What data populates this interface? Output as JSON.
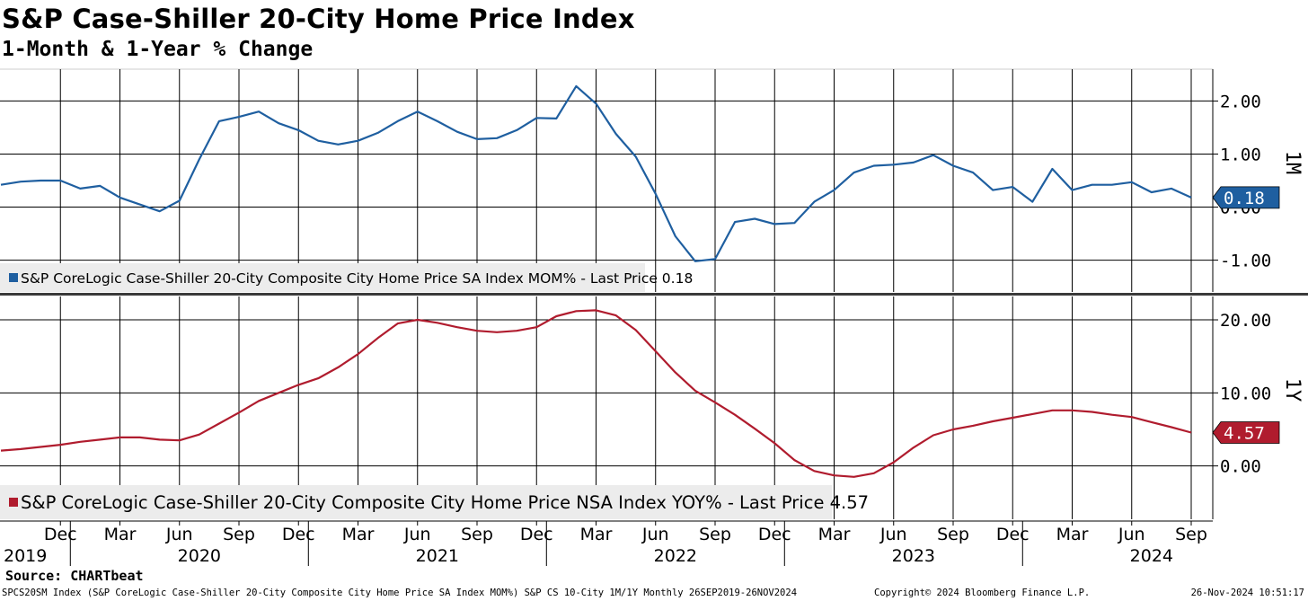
{
  "title": "S&P Case-Shiller 20-City Home Price Index",
  "subtitle": "1-Month & 1-Year % Change",
  "source": "Source: CHARTbeat",
  "footer": {
    "left": "SPCS20SM Index (S&P CoreLogic Case-Shiller 20-City Composite City Home Price SA Index MOM%) S&P CS 10-City 1M/1Y  Monthly 26SEP2019-26NOV2024",
    "copyright": "Copyright© 2024 Bloomberg Finance L.P.",
    "date": "26-Nov-2024 10:51:17"
  },
  "colors": {
    "mom": "#1f5fa0",
    "yoy": "#b01c2e",
    "grid": "#000000"
  },
  "chart_data": [
    {
      "type": "line",
      "panel": "top",
      "axis_label": "1M",
      "series_name": "S&P CoreLogic Case-Shiller 20-City Composite City Home Price SA Index MOM%",
      "legend": "S&P CoreLogic Case-Shiller 20-City Composite City Home Price SA Index MOM% - Last Price 0.18",
      "last_price": "0.18",
      "ylim": [
        -1.6,
        2.6
      ],
      "yticks": [
        -1.0,
        0.0,
        1.0,
        2.0
      ],
      "ytick_labels": [
        "-1.00",
        "0.00",
        "1.00",
        "2.00"
      ],
      "x": [
        "2019-09",
        "2019-10",
        "2019-11",
        "2019-12",
        "2020-01",
        "2020-02",
        "2020-03",
        "2020-04",
        "2020-05",
        "2020-06",
        "2020-07",
        "2020-08",
        "2020-09",
        "2020-10",
        "2020-11",
        "2020-12",
        "2021-01",
        "2021-02",
        "2021-03",
        "2021-04",
        "2021-05",
        "2021-06",
        "2021-07",
        "2021-08",
        "2021-09",
        "2021-10",
        "2021-11",
        "2021-12",
        "2022-01",
        "2022-02",
        "2022-03",
        "2022-04",
        "2022-05",
        "2022-06",
        "2022-07",
        "2022-08",
        "2022-09",
        "2022-10",
        "2022-11",
        "2022-12",
        "2023-01",
        "2023-02",
        "2023-03",
        "2023-04",
        "2023-05",
        "2023-06",
        "2023-07",
        "2023-08",
        "2023-09",
        "2023-10",
        "2023-11",
        "2023-12",
        "2024-01",
        "2024-02",
        "2024-03",
        "2024-04",
        "2024-05",
        "2024-06",
        "2024-07",
        "2024-08",
        "2024-09"
      ],
      "values": [
        0.42,
        0.48,
        0.5,
        0.5,
        0.35,
        0.4,
        0.18,
        0.05,
        -0.08,
        0.12,
        0.9,
        1.62,
        1.7,
        1.8,
        1.58,
        1.45,
        1.25,
        1.18,
        1.25,
        1.4,
        1.62,
        1.8,
        1.62,
        1.42,
        1.28,
        1.3,
        1.45,
        1.68,
        1.67,
        2.28,
        1.95,
        1.38,
        0.95,
        0.25,
        -0.55,
        -1.02,
        -0.98,
        -0.28,
        -0.22,
        -0.32,
        -0.3,
        0.1,
        0.32,
        0.65,
        0.78,
        0.8,
        0.84,
        0.98,
        0.78,
        0.65,
        0.32,
        0.38,
        0.1,
        0.72,
        0.32,
        0.42,
        0.42,
        0.47,
        0.28,
        0.35,
        0.18
      ]
    },
    {
      "type": "line",
      "panel": "bottom",
      "axis_label": "1Y",
      "series_name": "S&P CoreLogic Case-Shiller 20-City Composite City Home Price NSA Index YOY%",
      "legend": "S&P CoreLogic Case-Shiller 20-City Composite City Home Price NSA Index YOY% - Last Price 4.57",
      "last_price": "4.57",
      "ylim": [
        -7.3,
        23.2
      ],
      "yticks": [
        0.0,
        10.0,
        20.0
      ],
      "ytick_labels": [
        "0.00",
        "10.00",
        "20.00"
      ],
      "x": [
        "2019-09",
        "2019-10",
        "2019-11",
        "2019-12",
        "2020-01",
        "2020-02",
        "2020-03",
        "2020-04",
        "2020-05",
        "2020-06",
        "2020-07",
        "2020-08",
        "2020-09",
        "2020-10",
        "2020-11",
        "2020-12",
        "2021-01",
        "2021-02",
        "2021-03",
        "2021-04",
        "2021-05",
        "2021-06",
        "2021-07",
        "2021-08",
        "2021-09",
        "2021-10",
        "2021-11",
        "2021-12",
        "2022-01",
        "2022-02",
        "2022-03",
        "2022-04",
        "2022-05",
        "2022-06",
        "2022-07",
        "2022-08",
        "2022-09",
        "2022-10",
        "2022-11",
        "2022-12",
        "2023-01",
        "2023-02",
        "2023-03",
        "2023-04",
        "2023-05",
        "2023-06",
        "2023-07",
        "2023-08",
        "2023-09",
        "2023-10",
        "2023-11",
        "2023-12",
        "2024-01",
        "2024-02",
        "2024-03",
        "2024-04",
        "2024-05",
        "2024-06",
        "2024-07",
        "2024-08",
        "2024-09"
      ],
      "values": [
        2.1,
        2.3,
        2.6,
        2.9,
        3.3,
        3.6,
        3.9,
        3.9,
        3.6,
        3.5,
        4.3,
        5.8,
        7.3,
        8.9,
        10.0,
        11.1,
        12.0,
        13.5,
        15.3,
        17.5,
        19.5,
        20.0,
        19.6,
        19.0,
        18.5,
        18.3,
        18.5,
        19.0,
        20.5,
        21.2,
        21.3,
        20.6,
        18.6,
        15.7,
        12.8,
        10.3,
        8.7,
        7.0,
        5.1,
        3.1,
        0.8,
        -0.7,
        -1.3,
        -1.5,
        -1.0,
        0.5,
        2.5,
        4.2,
        5.0,
        5.5,
        6.1,
        6.6,
        7.1,
        7.6,
        7.6,
        7.4,
        7.0,
        6.7,
        6.0,
        5.3,
        4.57
      ]
    }
  ],
  "x_axis": {
    "month_ticks": [
      {
        "date": "2019-12",
        "label": "Dec"
      },
      {
        "date": "2020-03",
        "label": "Mar"
      },
      {
        "date": "2020-06",
        "label": "Jun"
      },
      {
        "date": "2020-09",
        "label": "Sep"
      },
      {
        "date": "2020-12",
        "label": "Dec"
      },
      {
        "date": "2021-03",
        "label": "Mar"
      },
      {
        "date": "2021-06",
        "label": "Jun"
      },
      {
        "date": "2021-09",
        "label": "Sep"
      },
      {
        "date": "2021-12",
        "label": "Dec"
      },
      {
        "date": "2022-03",
        "label": "Mar"
      },
      {
        "date": "2022-06",
        "label": "Jun"
      },
      {
        "date": "2022-09",
        "label": "Sep"
      },
      {
        "date": "2022-12",
        "label": "Dec"
      },
      {
        "date": "2023-03",
        "label": "Mar"
      },
      {
        "date": "2023-06",
        "label": "Jun"
      },
      {
        "date": "2023-09",
        "label": "Sep"
      },
      {
        "date": "2023-12",
        "label": "Dec"
      },
      {
        "date": "2024-03",
        "label": "Mar"
      },
      {
        "date": "2024-06",
        "label": "Jun"
      },
      {
        "date": "2024-09",
        "label": "Sep"
      }
    ],
    "year_labels": [
      {
        "date": "2019-10",
        "label": "2019"
      },
      {
        "date": "2020-07",
        "label": "2020"
      },
      {
        "date": "2021-07",
        "label": "2021"
      },
      {
        "date": "2022-07",
        "label": "2022"
      },
      {
        "date": "2023-07",
        "label": "2023"
      },
      {
        "date": "2024-07",
        "label": "2024"
      }
    ],
    "year_dividers": [
      "2020-01",
      "2021-01",
      "2022-01",
      "2023-01",
      "2024-01"
    ]
  }
}
